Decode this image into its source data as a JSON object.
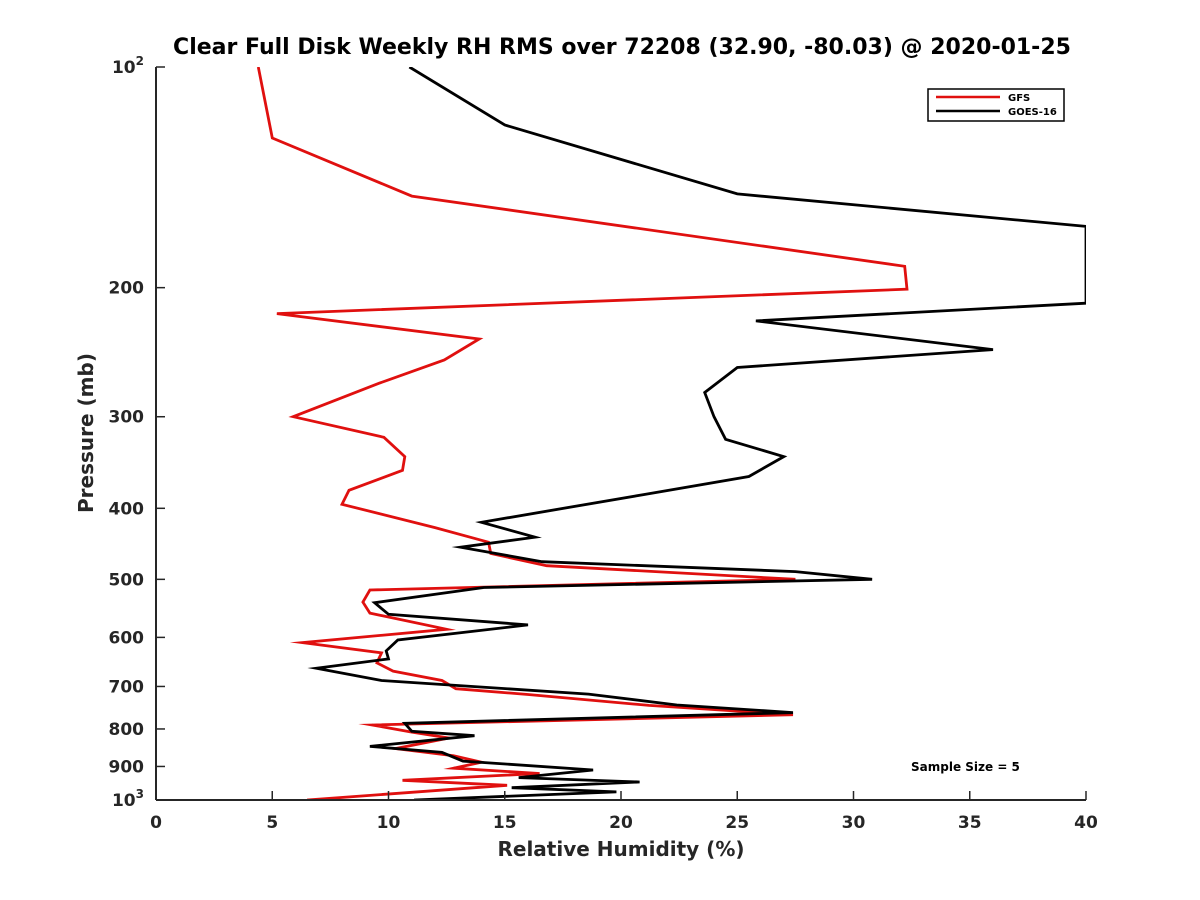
{
  "chart_data": {
    "type": "line",
    "title": "Clear Full Disk Weekly RH RMS over 72208 (32.90, -80.03) @ 2020-01-25",
    "xlabel": "Relative Humidity (%)",
    "ylabel": "Pressure (mb)",
    "xlim": [
      0,
      40
    ],
    "ylim": [
      100,
      1000
    ],
    "y_scale": "log",
    "y_reversed": true,
    "x_ticks": [
      "0",
      "5",
      "10",
      "15",
      "20",
      "25",
      "30",
      "35",
      "40"
    ],
    "y_ticks": [
      {
        "value": 100,
        "base": "10",
        "exp": "2"
      },
      {
        "value": 200,
        "label": "200"
      },
      {
        "value": 300,
        "label": "300"
      },
      {
        "value": 400,
        "label": "400"
      },
      {
        "value": 500,
        "label": "500"
      },
      {
        "value": 600,
        "label": "600"
      },
      {
        "value": 700,
        "label": "700"
      },
      {
        "value": 800,
        "label": "800"
      },
      {
        "value": 900,
        "label": "900"
      },
      {
        "value": 1000,
        "base": "10",
        "exp": "3"
      }
    ],
    "grid": false,
    "legend_position": "top-right",
    "annotation": "Sample Size = 5",
    "series": [
      {
        "name": "GFS",
        "color": "#e0100f",
        "points": [
          [
            4.4,
            100
          ],
          [
            5.0,
            125
          ],
          [
            11.0,
            150
          ],
          [
            32.2,
            187
          ],
          [
            32.3,
            201
          ],
          [
            5.2,
            217
          ],
          [
            13.9,
            235
          ],
          [
            12.4,
            251
          ],
          [
            9.6,
            270
          ],
          [
            5.9,
            300
          ],
          [
            9.8,
            320
          ],
          [
            10.7,
            340
          ],
          [
            10.6,
            355
          ],
          [
            8.3,
            378
          ],
          [
            8.0,
            395
          ],
          [
            12.0,
            425
          ],
          [
            14.3,
            445
          ],
          [
            14.4,
            461
          ],
          [
            15.6,
            470
          ],
          [
            16.8,
            479
          ],
          [
            27.5,
            500
          ],
          [
            9.2,
            517
          ],
          [
            8.9,
            537
          ],
          [
            9.2,
            556
          ],
          [
            12.5,
            585
          ],
          [
            6.3,
            610
          ],
          [
            9.7,
            630
          ],
          [
            9.5,
            650
          ],
          [
            10.2,
            667
          ],
          [
            12.3,
            687
          ],
          [
            12.9,
            705
          ],
          [
            16.0,
            718
          ],
          [
            21.2,
            743
          ],
          [
            27.4,
            765
          ],
          [
            9.3,
            790
          ],
          [
            11.0,
            808
          ],
          [
            12.6,
            823
          ],
          [
            10.3,
            851
          ],
          [
            12.8,
            870
          ],
          [
            14.0,
            888
          ],
          [
            12.8,
            905
          ],
          [
            16.5,
            920
          ],
          [
            10.6,
            940
          ],
          [
            15.1,
            955
          ],
          [
            6.5,
            1000
          ]
        ]
      },
      {
        "name": "GOES-16",
        "color": "#000000",
        "points": [
          [
            10.9,
            100
          ],
          [
            15.0,
            120
          ],
          [
            25.0,
            149
          ],
          [
            40.0,
            165
          ],
          [
            40.0,
            210
          ],
          [
            25.8,
            222
          ],
          [
            36.0,
            243
          ],
          [
            25.0,
            257
          ],
          [
            23.6,
            278
          ],
          [
            24.0,
            300
          ],
          [
            24.5,
            322
          ],
          [
            27.0,
            340
          ],
          [
            25.5,
            362
          ],
          [
            21.0,
            383
          ],
          [
            14.0,
            418
          ],
          [
            16.3,
            438
          ],
          [
            13.1,
            452
          ],
          [
            16.6,
            473
          ],
          [
            27.5,
            488
          ],
          [
            30.8,
            500
          ],
          [
            14.1,
            513
          ],
          [
            9.4,
            538
          ],
          [
            10.0,
            558
          ],
          [
            16.0,
            577
          ],
          [
            10.4,
            605
          ],
          [
            9.9,
            626
          ],
          [
            10.0,
            642
          ],
          [
            6.9,
            661
          ],
          [
            9.7,
            687
          ],
          [
            18.6,
            717
          ],
          [
            22.4,
            742
          ],
          [
            27.4,
            760
          ],
          [
            10.7,
            786
          ],
          [
            11.0,
            806
          ],
          [
            13.7,
            817
          ],
          [
            9.2,
            845
          ],
          [
            12.3,
            861
          ],
          [
            13.2,
            885
          ],
          [
            18.8,
            910
          ],
          [
            15.6,
            932
          ],
          [
            20.8,
            945
          ],
          [
            15.3,
            962
          ],
          [
            19.8,
            975
          ],
          [
            11.1,
            1000
          ]
        ]
      }
    ]
  }
}
